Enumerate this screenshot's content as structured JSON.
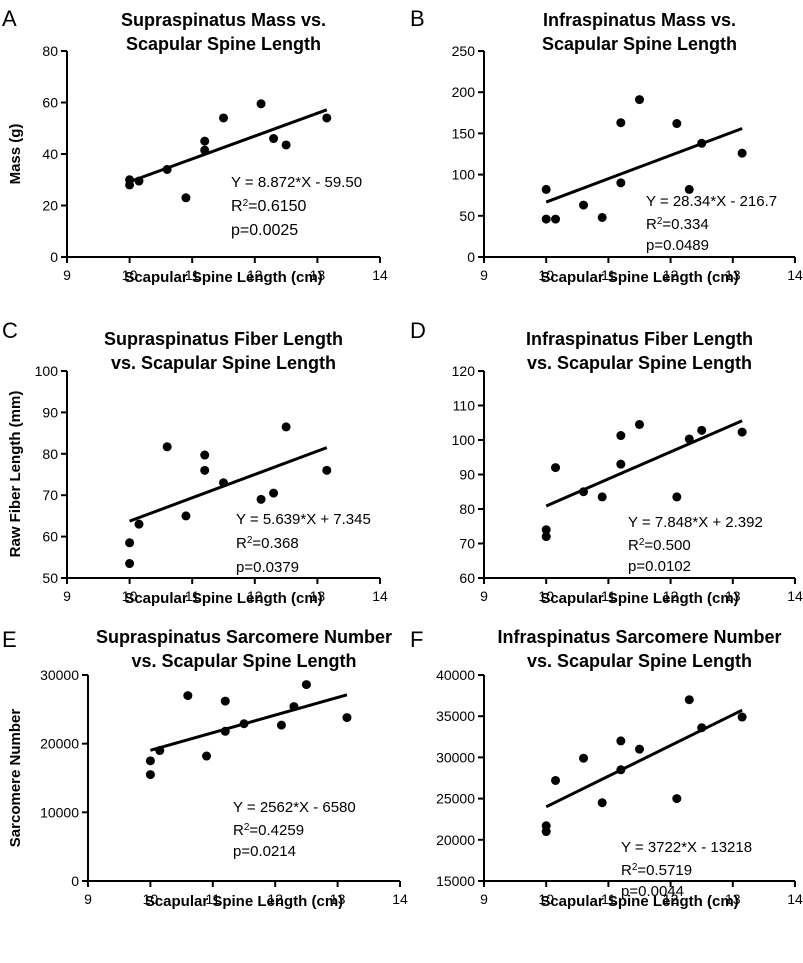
{
  "chart_data": [
    {
      "type": "scatter",
      "panel": "A",
      "title": [
        "Supraspinatus Mass vs.",
        "Scapular Spine Length"
      ],
      "xlabel": "Scapular Spine Length (cm)",
      "ylabel": "Mass (g)",
      "xlim": [
        9,
        14
      ],
      "ylim": [
        0,
        80
      ],
      "xticks": [
        9,
        10,
        11,
        12,
        13,
        14
      ],
      "yticks": [
        0,
        20,
        40,
        60,
        80
      ],
      "points": [
        {
          "x": 10.0,
          "y": 28
        },
        {
          "x": 10.0,
          "y": 30
        },
        {
          "x": 10.15,
          "y": 29.5
        },
        {
          "x": 10.6,
          "y": 34
        },
        {
          "x": 10.9,
          "y": 23
        },
        {
          "x": 11.2,
          "y": 45
        },
        {
          "x": 11.2,
          "y": 41.5
        },
        {
          "x": 11.5,
          "y": 54
        },
        {
          "x": 12.1,
          "y": 59.5
        },
        {
          "x": 12.3,
          "y": 46
        },
        {
          "x": 12.5,
          "y": 43.5
        },
        {
          "x": 13.15,
          "y": 54
        }
      ],
      "fit": {
        "slope": 8.872,
        "intercept": -59.5,
        "x_range": [
          10,
          13.15
        ]
      },
      "annotations": [
        "Y = 8.872*X - 59.50",
        "R2=0.6150",
        "p=0.0025"
      ]
    },
    {
      "type": "scatter",
      "panel": "B",
      "title": [
        "Infraspinatus Mass vs.",
        "Scapular Spine Length"
      ],
      "xlabel": "Scapular Spine Length (cm)",
      "ylabel": "",
      "xlim": [
        9,
        14
      ],
      "ylim": [
        0,
        250
      ],
      "xticks": [
        9,
        10,
        11,
        12,
        13,
        14
      ],
      "yticks": [
        0,
        50,
        100,
        150,
        200,
        250
      ],
      "points": [
        {
          "x": 10.0,
          "y": 82
        },
        {
          "x": 10.0,
          "y": 46
        },
        {
          "x": 10.15,
          "y": 46
        },
        {
          "x": 10.6,
          "y": 63
        },
        {
          "x": 10.9,
          "y": 48
        },
        {
          "x": 11.2,
          "y": 163
        },
        {
          "x": 11.2,
          "y": 90
        },
        {
          "x": 11.5,
          "y": 191
        },
        {
          "x": 12.1,
          "y": 162
        },
        {
          "x": 12.3,
          "y": 82
        },
        {
          "x": 12.5,
          "y": 138
        },
        {
          "x": 13.15,
          "y": 126
        }
      ],
      "fit": {
        "slope": 28.34,
        "intercept": -216.7,
        "x_range": [
          10,
          13.15
        ]
      },
      "annotations": [
        "Y = 28.34*X - 216.7",
        "R2=0.334",
        "p=0.0489"
      ]
    },
    {
      "type": "scatter",
      "panel": "C",
      "title": [
        "Supraspinatus Fiber Length",
        "vs. Scapular Spine Length"
      ],
      "xlabel": "Scapular Spine Length (cm)",
      "ylabel": "Raw Fiber Length (mm)",
      "xlim": [
        9,
        14
      ],
      "ylim": [
        50,
        100
      ],
      "xticks": [
        9,
        10,
        11,
        12,
        13,
        14
      ],
      "yticks": [
        50,
        60,
        70,
        80,
        90,
        100
      ],
      "points": [
        {
          "x": 10.0,
          "y": 58.5
        },
        {
          "x": 10.0,
          "y": 53.5
        },
        {
          "x": 10.15,
          "y": 63
        },
        {
          "x": 10.6,
          "y": 81.7
        },
        {
          "x": 10.9,
          "y": 65
        },
        {
          "x": 11.2,
          "y": 79.7
        },
        {
          "x": 11.2,
          "y": 76
        },
        {
          "x": 11.5,
          "y": 73
        },
        {
          "x": 12.1,
          "y": 69
        },
        {
          "x": 12.3,
          "y": 70.5
        },
        {
          "x": 12.5,
          "y": 86.5
        },
        {
          "x": 13.15,
          "y": 76
        }
      ],
      "fit": {
        "slope": 5.639,
        "intercept": 7.345,
        "x_range": [
          10,
          13.15
        ]
      },
      "annotations": [
        "Y = 5.639*X + 7.345",
        "R2=0.368",
        "p=0.0379"
      ]
    },
    {
      "type": "scatter",
      "panel": "D",
      "title": [
        "Infraspinatus Fiber Length",
        "vs. Scapular Spine Length"
      ],
      "xlabel": "Scapular Spine Length (cm)",
      "ylabel": "",
      "xlim": [
        9,
        14
      ],
      "ylim": [
        60,
        120
      ],
      "xticks": [
        9,
        10,
        11,
        12,
        13,
        14
      ],
      "yticks": [
        60,
        70,
        80,
        90,
        100,
        110,
        120
      ],
      "points": [
        {
          "x": 10.0,
          "y": 74
        },
        {
          "x": 10.0,
          "y": 72
        },
        {
          "x": 10.15,
          "y": 92
        },
        {
          "x": 10.6,
          "y": 85
        },
        {
          "x": 10.9,
          "y": 83.5
        },
        {
          "x": 11.2,
          "y": 101.3
        },
        {
          "x": 11.2,
          "y": 93
        },
        {
          "x": 11.5,
          "y": 104.5
        },
        {
          "x": 12.1,
          "y": 83.5
        },
        {
          "x": 12.3,
          "y": 100.3
        },
        {
          "x": 12.5,
          "y": 102.8
        },
        {
          "x": 13.15,
          "y": 102.3
        }
      ],
      "fit": {
        "slope": 7.848,
        "intercept": 2.392,
        "x_range": [
          10,
          13.15
        ]
      },
      "annotations": [
        "Y = 7.848*X + 2.392",
        "R2=0.500",
        "p=0.0102"
      ]
    },
    {
      "type": "scatter",
      "panel": "E",
      "title": [
        "Supraspinatus Sarcomere Number",
        "vs. Scapular Spine Length"
      ],
      "xlabel": "Scapular Spine Length (cm)",
      "ylabel": "Sarcomere Number",
      "xlim": [
        9,
        14
      ],
      "ylim": [
        0,
        30000
      ],
      "xticks": [
        9,
        10,
        11,
        12,
        13,
        14
      ],
      "yticks": [
        0,
        10000,
        20000,
        30000
      ],
      "points": [
        {
          "x": 10.0,
          "y": 17500
        },
        {
          "x": 10.0,
          "y": 15500
        },
        {
          "x": 10.15,
          "y": 19000
        },
        {
          "x": 10.6,
          "y": 27000
        },
        {
          "x": 10.9,
          "y": 18200
        },
        {
          "x": 11.2,
          "y": 26200
        },
        {
          "x": 11.2,
          "y": 21800
        },
        {
          "x": 11.5,
          "y": 22900
        },
        {
          "x": 12.1,
          "y": 22700
        },
        {
          "x": 12.3,
          "y": 25400
        },
        {
          "x": 12.5,
          "y": 28600
        },
        {
          "x": 13.15,
          "y": 23800
        }
      ],
      "fit": {
        "slope": 2562,
        "intercept": -6580,
        "x_range": [
          10,
          13.15
        ]
      },
      "annotations": [
        "Y = 2562*X - 6580",
        "R2=0.4259",
        "p=0.0214"
      ]
    },
    {
      "type": "scatter",
      "panel": "F",
      "title": [
        "Infraspinatus Sarcomere Number",
        "vs. Scapular Spine Length"
      ],
      "xlabel": "Scapular Spine Length (cm)",
      "ylabel": "",
      "xlim": [
        9,
        14
      ],
      "ylim": [
        15000,
        40000
      ],
      "xticks": [
        9,
        10,
        11,
        12,
        13,
        14
      ],
      "yticks": [
        15000,
        20000,
        25000,
        30000,
        35000,
        40000
      ],
      "points": [
        {
          "x": 10.0,
          "y": 21700
        },
        {
          "x": 10.0,
          "y": 21000
        },
        {
          "x": 10.15,
          "y": 27200
        },
        {
          "x": 10.6,
          "y": 29900
        },
        {
          "x": 10.9,
          "y": 24500
        },
        {
          "x": 11.2,
          "y": 32000
        },
        {
          "x": 11.2,
          "y": 28500
        },
        {
          "x": 11.5,
          "y": 31000
        },
        {
          "x": 12.1,
          "y": 25000
        },
        {
          "x": 12.3,
          "y": 37000
        },
        {
          "x": 12.5,
          "y": 33600
        },
        {
          "x": 13.15,
          "y": 34900
        }
      ],
      "fit": {
        "slope": 3722,
        "intercept": -13218,
        "x_range": [
          10,
          13.15
        ]
      },
      "annotations": [
        "Y = 3722*X - 13218",
        "R2=0.5719",
        "p=0.0044"
      ]
    }
  ]
}
